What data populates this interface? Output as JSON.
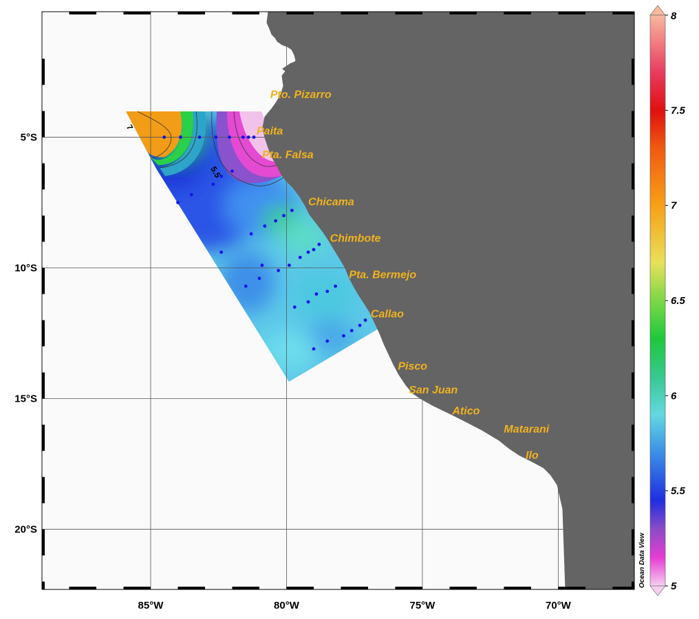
{
  "map": {
    "lon_range": [
      -89,
      -67.2
    ],
    "lat_range": [
      -22.3,
      -0.2
    ],
    "grid_lons": [
      -85,
      -80,
      -75,
      -70
    ],
    "grid_lats": [
      -5,
      -10,
      -15,
      -20
    ],
    "lon_labels": [
      "85°W",
      "80°W",
      "75°W",
      "70°W"
    ],
    "lat_labels": [
      "5°S",
      "10°S",
      "15°S",
      "20°S"
    ],
    "land_color": "#646464",
    "sea_color": "#ffffff"
  },
  "places": [
    {
      "name": "Pto. Pizarro",
      "lon": -80.6,
      "lat": -3.5
    },
    {
      "name": "Paita",
      "lon": -81.1,
      "lat": -4.9
    },
    {
      "name": "Pta. Falsa",
      "lon": -80.9,
      "lat": -5.8
    },
    {
      "name": "Chicama",
      "lon": -79.2,
      "lat": -7.6
    },
    {
      "name": "Chimbote",
      "lon": -78.4,
      "lat": -9.0
    },
    {
      "name": "Pta. Bermejo",
      "lon": -77.7,
      "lat": -10.4
    },
    {
      "name": "Callao",
      "lon": -76.9,
      "lat": -11.9
    },
    {
      "name": "Pisco",
      "lon": -75.9,
      "lat": -13.9
    },
    {
      "name": "San Juan",
      "lon": -75.5,
      "lat": -14.8
    },
    {
      "name": "Atico",
      "lon": -73.9,
      "lat": -15.6
    },
    {
      "name": "Matarani",
      "lon": -72.0,
      "lat": -16.3
    },
    {
      "name": "Ilo",
      "lon": -71.2,
      "lat": -17.3
    }
  ],
  "stations": [
    [
      -84.5,
      -5.0
    ],
    [
      -83.9,
      -5.0
    ],
    [
      -83.2,
      -5.0
    ],
    [
      -82.6,
      -5.0
    ],
    [
      -82.1,
      -5.0
    ],
    [
      -81.6,
      -5.0
    ],
    [
      -81.4,
      -5.0
    ],
    [
      -81.2,
      -5.0
    ],
    [
      -82.0,
      -6.3
    ],
    [
      -82.4,
      -6.5
    ],
    [
      -82.7,
      -6.8
    ],
    [
      -84.0,
      -7.5
    ],
    [
      -83.5,
      -7.2
    ],
    [
      -81.3,
      -8.7
    ],
    [
      -80.8,
      -8.4
    ],
    [
      -80.4,
      -8.2
    ],
    [
      -80.1,
      -8.0
    ],
    [
      -79.8,
      -7.8
    ],
    [
      -82.4,
      -9.4
    ],
    [
      -80.9,
      -9.9
    ],
    [
      -80.3,
      -10.1
    ],
    [
      -79.9,
      -9.9
    ],
    [
      -79.5,
      -9.6
    ],
    [
      -79.2,
      -9.4
    ],
    [
      -79.0,
      -9.3
    ],
    [
      -78.8,
      -9.1
    ],
    [
      -81.5,
      -10.7
    ],
    [
      -81.0,
      -10.4
    ],
    [
      -79.7,
      -11.5
    ],
    [
      -79.2,
      -11.3
    ],
    [
      -78.9,
      -11.0
    ],
    [
      -78.5,
      -10.9
    ],
    [
      -78.2,
      -10.7
    ],
    [
      -79.0,
      -13.1
    ],
    [
      -78.5,
      -12.8
    ],
    [
      -77.9,
      -12.6
    ],
    [
      -77.6,
      -12.4
    ],
    [
      -77.3,
      -12.2
    ],
    [
      -77.1,
      -12.0
    ]
  ],
  "contour_labels": [
    {
      "text": "5.5",
      "lon": -82.8,
      "lat": -6.2
    },
    {
      "text": "7",
      "lon": -85.9,
      "lat": -4.6
    }
  ],
  "colorbar": {
    "min": 5,
    "max": 8,
    "tick_values": [
      5,
      5.5,
      6,
      6.5,
      7,
      7.5,
      8
    ],
    "tick_labels": [
      "5",
      "5.5",
      "6",
      "6.5",
      "7",
      "7.5",
      "8"
    ],
    "stops": [
      {
        "v": 5.0,
        "c": "#f5cff0"
      },
      {
        "v": 5.15,
        "c": "#e63cd2"
      },
      {
        "v": 5.3,
        "c": "#8a4cc8"
      },
      {
        "v": 5.45,
        "c": "#1f2ee0"
      },
      {
        "v": 5.7,
        "c": "#3b8fe8"
      },
      {
        "v": 5.9,
        "c": "#62d8e0"
      },
      {
        "v": 6.1,
        "c": "#38c890"
      },
      {
        "v": 6.3,
        "c": "#1ec83c"
      },
      {
        "v": 6.5,
        "c": "#7cd848"
      },
      {
        "v": 6.7,
        "c": "#e8e05a"
      },
      {
        "v": 7.0,
        "c": "#f8a018"
      },
      {
        "v": 7.3,
        "c": "#f05a10"
      },
      {
        "v": 7.5,
        "c": "#e01010"
      },
      {
        "v": 7.7,
        "c": "#e83c60"
      },
      {
        "v": 8.0,
        "c": "#f8b8a0"
      }
    ]
  },
  "watermark": "Ocean Data View"
}
